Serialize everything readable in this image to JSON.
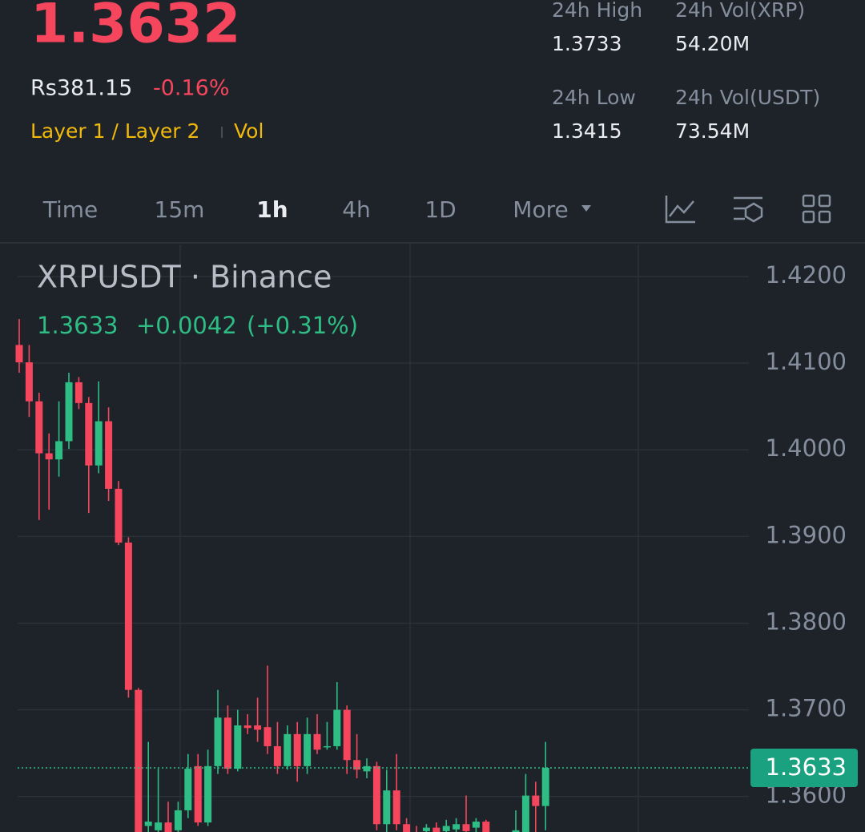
{
  "header": {
    "price": "1.3632",
    "fiat": "Rs381.15",
    "change": "-0.16%",
    "tag": "Layer 1 / Layer 2",
    "tag2": "Vol",
    "stats": [
      {
        "label": "24h High",
        "value": "1.3733"
      },
      {
        "label": "24h Vol(XRP)",
        "value": "54.20M"
      },
      {
        "label": "24h Low",
        "value": "1.3415"
      },
      {
        "label": "24h Vol(USDT)",
        "value": "73.54M"
      }
    ]
  },
  "tabs": [
    "Time",
    "15m",
    "1h",
    "4h",
    "1D",
    "More"
  ],
  "chart_data": {
    "type": "candlestick",
    "title": "XRPUSDT · Binance",
    "last": "1.3633",
    "last_change": "+0.0042",
    "last_change_pct": "(+0.31%)",
    "up_color": "#2ebd85",
    "down_color": "#f6465d",
    "ylim": [
      1.3559,
      1.4237
    ],
    "yticks": [
      {
        "value": 1.42,
        "label": "1.4200"
      },
      {
        "value": 1.41,
        "label": "1.4100"
      },
      {
        "value": 1.4,
        "label": "1.4000"
      },
      {
        "value": 1.39,
        "label": "1.3900"
      },
      {
        "value": 1.38,
        "label": "1.3800"
      },
      {
        "value": 1.37,
        "label": "1.3700"
      },
      {
        "value": 1.36,
        "label": "1.3600"
      }
    ],
    "grid": true,
    "last_price": 1.3633,
    "open": [
      1.4121,
      1.4101,
      1.4056,
      1.3996,
      1.3989,
      1.401,
      1.4078,
      1.4054,
      1.3982,
      1.4033,
      1.3955,
      1.3893,
      1.3723,
      1.3566,
      1.3561,
      1.357,
      1.3561,
      1.3584,
      1.3635,
      1.357,
      1.3635,
      1.3691,
      1.3632,
      1.3682,
      1.3682,
      1.368,
      1.3658,
      1.3635,
      1.3672,
      1.3635,
      1.3672,
      1.3657,
      1.3658,
      1.37,
      1.3642,
      1.3629,
      1.3635,
      1.3568,
      1.3607,
      1.3568,
      1.3558,
      1.356,
      1.3564,
      1.356,
      1.3562,
      1.3568,
      1.3564,
      1.3571,
      1.3552,
      1.3555,
      1.3552,
      1.3556,
      1.3601,
      1.3589
    ],
    "high": [
      1.4151,
      1.4121,
      1.4066,
      1.4019,
      1.4056,
      1.4089,
      1.4084,
      1.4061,
      1.4079,
      1.4049,
      1.3964,
      1.3899,
      1.3725,
      1.3663,
      1.3632,
      1.3594,
      1.3594,
      1.3649,
      1.3649,
      1.3654,
      1.3723,
      1.3705,
      1.37,
      1.3695,
      1.3714,
      1.3751,
      1.3686,
      1.3682,
      1.3686,
      1.3691,
      1.3695,
      1.3686,
      1.3732,
      1.3705,
      1.3672,
      1.3644,
      1.364,
      1.3631,
      1.3649,
      1.3575,
      1.3566,
      1.3568,
      1.357,
      1.3573,
      1.3575,
      1.3601,
      1.3575,
      1.3573,
      1.3556,
      1.3556,
      1.3584,
      1.3626,
      1.3617,
      1.3663
    ],
    "low": [
      1.4089,
      1.4038,
      1.3919,
      1.3931,
      1.3969,
      1.4001,
      1.4047,
      1.3927,
      1.3973,
      1.3941,
      1.389,
      1.3714,
      1.354,
      1.3556,
      1.3552,
      1.3552,
      1.3555,
      1.3575,
      1.3566,
      1.3566,
      1.3626,
      1.3626,
      1.3629,
      1.3672,
      1.3663,
      1.3649,
      1.3626,
      1.3631,
      1.3617,
      1.3626,
      1.3649,
      1.3654,
      1.3654,
      1.3626,
      1.3621,
      1.3621,
      1.3561,
      1.3556,
      1.3561,
      1.3552,
      1.3547,
      1.3552,
      1.3552,
      1.3555,
      1.3556,
      1.3556,
      1.3556,
      1.3552,
      1.3547,
      1.3545,
      1.3547,
      1.3552,
      1.3556,
      1.3561
    ],
    "close": [
      1.4101,
      1.4056,
      1.3996,
      1.3989,
      1.401,
      1.4078,
      1.4054,
      1.3982,
      1.4033,
      1.3955,
      1.3893,
      1.3723,
      1.355,
      1.3571,
      1.357,
      1.3556,
      1.3584,
      1.3632,
      1.357,
      1.3635,
      1.3691,
      1.3632,
      1.3682,
      1.3679,
      1.3677,
      1.3658,
      1.3635,
      1.3672,
      1.3635,
      1.3672,
      1.3654,
      1.3658,
      1.37,
      1.3642,
      1.3631,
      1.3635,
      1.3568,
      1.3607,
      1.3568,
      1.3556,
      1.3552,
      1.3564,
      1.3556,
      1.3566,
      1.3568,
      1.356,
      1.3571,
      1.3558,
      1.3555,
      1.3549,
      1.3561,
      1.3601,
      1.3589,
      1.3633
    ]
  }
}
